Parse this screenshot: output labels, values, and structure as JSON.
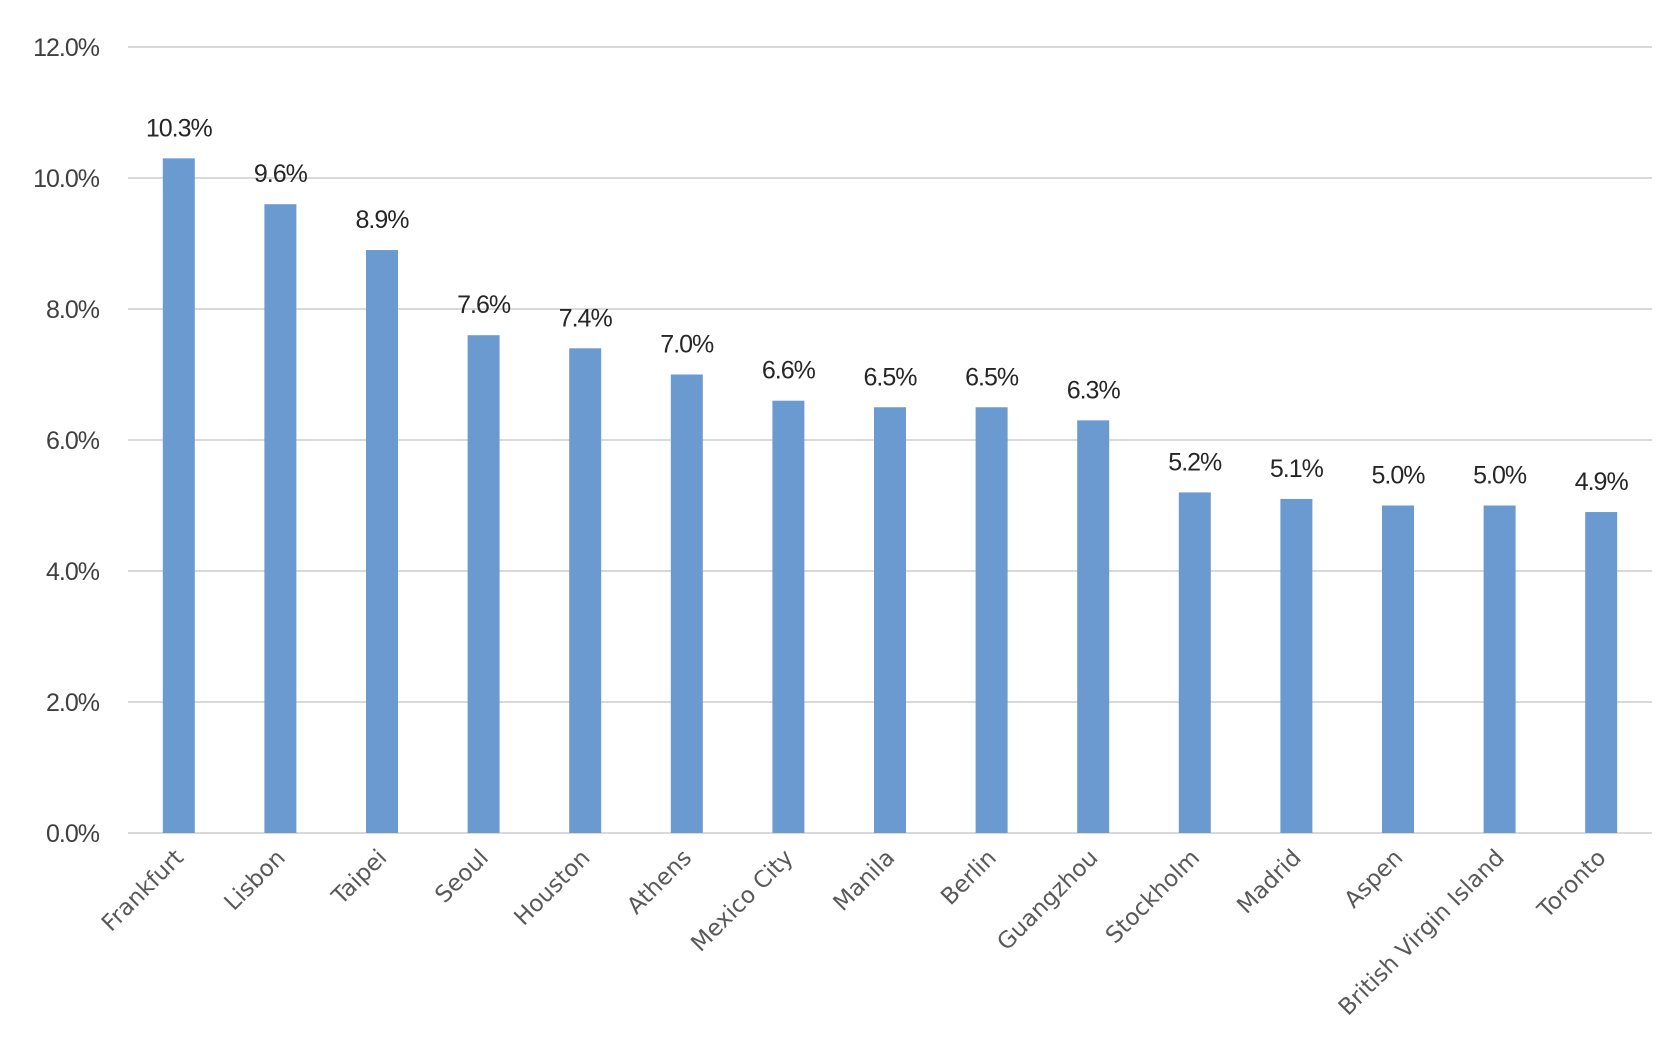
{
  "chart_data": {
    "type": "bar",
    "categories": [
      "Frankfurt",
      "Lisbon",
      "Taipei",
      "Seoul",
      "Houston",
      "Athens",
      "Mexico City",
      "Manila",
      "Berlin",
      "Guangzhou",
      "Stockholm",
      "Madrid",
      "Aspen",
      "British Virgin Island",
      "Toronto"
    ],
    "values": [
      10.3,
      9.6,
      8.9,
      7.6,
      7.4,
      7.0,
      6.6,
      6.5,
      6.5,
      6.3,
      5.2,
      5.1,
      5.0,
      5.0,
      4.9
    ],
    "data_labels": [
      "10.3%",
      "9.6%",
      "8.9%",
      "7.6%",
      "7.4%",
      "7.0%",
      "6.6%",
      "6.5%",
      "6.5%",
      "6.3%",
      "5.2%",
      "5.1%",
      "5.0%",
      "5.0%",
      "4.9%"
    ],
    "y_ticks": [
      0,
      2,
      4,
      6,
      8,
      10,
      12
    ],
    "y_tick_labels": [
      "0.0%",
      "2.0%",
      "4.0%",
      "6.0%",
      "8.0%",
      "10.0%",
      "12.0%"
    ],
    "ylim": [
      0,
      12
    ],
    "title": "",
    "xlabel": "",
    "ylabel": "",
    "grid": true,
    "legend": "none",
    "bar_color": "#6a9ad0",
    "grid_color": "#d9d9d9"
  }
}
